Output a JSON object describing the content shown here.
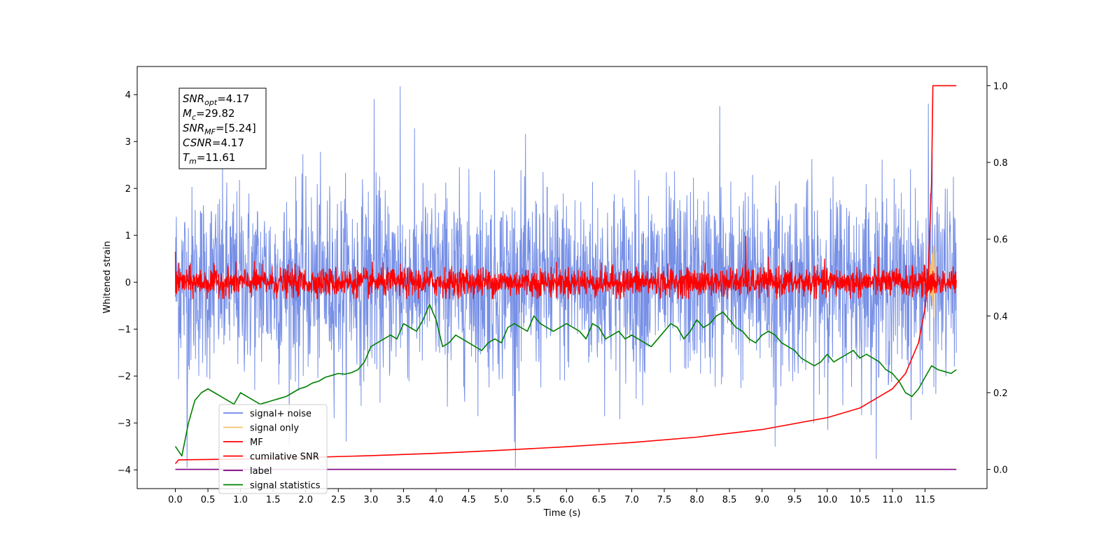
{
  "chart_data": {
    "type": "line",
    "xlabel": "Time (s)",
    "ylabel": "Whitened strain",
    "xlim": [
      -0.1,
      12.5
    ],
    "ylim": [
      -4.4,
      4.6
    ],
    "y2lim": [
      -0.05,
      1.05
    ],
    "grid": false,
    "x_ticks": [
      "0.0",
      "0.5",
      "1.0",
      "1.5",
      "2.0",
      "2.5",
      "3.0",
      "3.5",
      "4.0",
      "4.5",
      "5.0",
      "5.5",
      "6.0",
      "6.5",
      "7.0",
      "7.5",
      "8.0",
      "8.5",
      "9.0",
      "9.5",
      "10.0",
      "10.5",
      "11.0",
      "11.5"
    ],
    "y_ticks": [
      "−4",
      "−3",
      "−2",
      "−1",
      "0",
      "1",
      "2",
      "3",
      "4"
    ],
    "y2_ticks": [
      "0.0",
      "0.2",
      "0.4",
      "0.6",
      "0.8",
      "1.0"
    ],
    "legend_position": "lower-left",
    "annotation": {
      "lines": [
        {
          "sym": "SNR",
          "sub": "opt",
          "rest": "=4.17"
        },
        {
          "sym": "M",
          "sub": "c",
          "rest": "=29.82"
        },
        {
          "sym": "SNR",
          "sub": "MF",
          "rest": "=[5.24]"
        },
        {
          "sym": "CSNR",
          "sub": "",
          "rest": "=4.17"
        },
        {
          "sym": "T",
          "sub": "m",
          "rest": "=11.61"
        }
      ]
    },
    "series": [
      {
        "name": "signal+ noise",
        "color": "#6b87e4",
        "axis": "left",
        "x_range": [
          0,
          11.98
        ],
        "mean": 0,
        "std": 1.0,
        "max": 4.17,
        "min": -3.95
      },
      {
        "name": "signal only",
        "color": "#f5c26b",
        "axis": "left",
        "x_range": [
          11.45,
          11.64
        ],
        "peak": 0.9,
        "trough": -1.0
      },
      {
        "name": "MF",
        "color": "#ff0000",
        "axis": "left",
        "x_range": [
          0,
          11.98
        ],
        "mean": 0,
        "std": 0.15,
        "max": 1.0,
        "min": -0.35
      },
      {
        "name": "cumilative SNR",
        "color": "#ff0000",
        "axis": "right",
        "x": [
          0.0,
          0.05,
          1.0,
          2.0,
          3.0,
          4.0,
          5.0,
          6.0,
          7.0,
          8.0,
          9.0,
          10.0,
          10.5,
          11.0,
          11.2,
          11.4,
          11.5,
          11.55,
          11.6,
          11.62,
          11.98
        ],
        "y": [
          0.015,
          0.025,
          0.027,
          0.031,
          0.036,
          0.042,
          0.05,
          0.059,
          0.07,
          0.084,
          0.104,
          0.135,
          0.16,
          0.21,
          0.25,
          0.33,
          0.42,
          0.52,
          0.75,
          1.0,
          1.0
        ]
      },
      {
        "name": "label",
        "color": "#800080",
        "axis": "right",
        "x": [
          0,
          11.98
        ],
        "y": [
          0.0,
          0.0
        ]
      },
      {
        "name": "signal statistics",
        "color": "#008000",
        "axis": "right",
        "x": [
          0.0,
          0.1,
          0.2,
          0.3,
          0.4,
          0.5,
          0.6,
          0.7,
          0.8,
          0.9,
          1.0,
          1.1,
          1.2,
          1.3,
          1.4,
          1.5,
          1.6,
          1.7,
          1.8,
          1.9,
          2.0,
          2.1,
          2.2,
          2.3,
          2.4,
          2.5,
          2.6,
          2.7,
          2.8,
          2.9,
          3.0,
          3.1,
          3.2,
          3.3,
          3.4,
          3.5,
          3.6,
          3.7,
          3.8,
          3.9,
          4.0,
          4.1,
          4.2,
          4.3,
          4.4,
          4.5,
          4.6,
          4.7,
          4.8,
          4.9,
          5.0,
          5.1,
          5.2,
          5.3,
          5.4,
          5.5,
          5.6,
          5.7,
          5.8,
          5.9,
          6.0,
          6.1,
          6.2,
          6.3,
          6.4,
          6.5,
          6.6,
          6.7,
          6.8,
          6.9,
          7.0,
          7.1,
          7.2,
          7.3,
          7.4,
          7.5,
          7.6,
          7.7,
          7.8,
          7.9,
          8.0,
          8.1,
          8.2,
          8.3,
          8.4,
          8.5,
          8.6,
          8.7,
          8.8,
          8.9,
          9.0,
          9.1,
          9.2,
          9.3,
          9.4,
          9.5,
          9.6,
          9.7,
          9.8,
          9.9,
          10.0,
          10.1,
          10.2,
          10.3,
          10.4,
          10.5,
          10.6,
          10.7,
          10.8,
          10.9,
          11.0,
          11.1,
          11.2,
          11.3,
          11.4,
          11.5,
          11.6,
          11.7,
          11.8,
          11.9,
          11.98
        ],
        "y": [
          0.06,
          0.035,
          0.12,
          0.18,
          0.2,
          0.21,
          0.2,
          0.19,
          0.18,
          0.17,
          0.2,
          0.19,
          0.18,
          0.17,
          0.175,
          0.18,
          0.185,
          0.19,
          0.2,
          0.21,
          0.215,
          0.225,
          0.23,
          0.24,
          0.245,
          0.25,
          0.248,
          0.252,
          0.26,
          0.28,
          0.32,
          0.33,
          0.34,
          0.35,
          0.34,
          0.38,
          0.37,
          0.36,
          0.39,
          0.43,
          0.39,
          0.32,
          0.33,
          0.35,
          0.34,
          0.33,
          0.32,
          0.31,
          0.33,
          0.34,
          0.33,
          0.37,
          0.38,
          0.37,
          0.36,
          0.4,
          0.38,
          0.37,
          0.36,
          0.37,
          0.38,
          0.37,
          0.36,
          0.34,
          0.38,
          0.37,
          0.34,
          0.35,
          0.36,
          0.34,
          0.35,
          0.34,
          0.33,
          0.32,
          0.34,
          0.36,
          0.38,
          0.37,
          0.34,
          0.36,
          0.39,
          0.37,
          0.38,
          0.4,
          0.41,
          0.39,
          0.37,
          0.36,
          0.34,
          0.33,
          0.35,
          0.36,
          0.35,
          0.33,
          0.32,
          0.31,
          0.29,
          0.28,
          0.27,
          0.28,
          0.3,
          0.28,
          0.29,
          0.3,
          0.31,
          0.29,
          0.3,
          0.29,
          0.28,
          0.26,
          0.25,
          0.23,
          0.2,
          0.19,
          0.21,
          0.24,
          0.27,
          0.26,
          0.255,
          0.25,
          0.26
        ]
      }
    ]
  }
}
